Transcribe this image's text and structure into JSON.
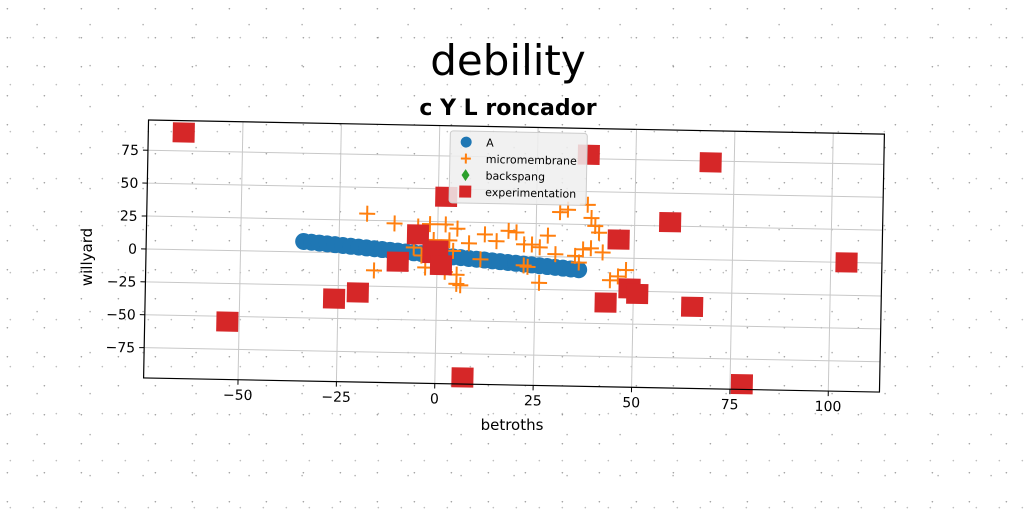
{
  "chart_data": {
    "type": "scatter",
    "title": "debility",
    "subtitle": "c Y L roncador",
    "xlabel": "betroths",
    "ylabel": "willyard",
    "xlim": [
      -74,
      113
    ],
    "ylim": [
      -98,
      98
    ],
    "xticks": [
      -50,
      -25,
      0,
      25,
      50,
      75,
      100
    ],
    "yticks": [
      -75,
      -50,
      -25,
      0,
      25,
      50,
      75
    ],
    "grid": true,
    "legend_position": "top-center",
    "series": [
      {
        "name": "A",
        "marker": "circle",
        "color": "#1f77b4",
        "points": [
          [
            -34,
            8
          ],
          [
            -32,
            7.5
          ],
          [
            -30,
            7
          ],
          [
            -28,
            6.5
          ],
          [
            -26,
            6
          ],
          [
            -24,
            5.5
          ],
          [
            -22,
            5
          ],
          [
            -20,
            4.5
          ],
          [
            -18,
            4
          ],
          [
            -16,
            3.5
          ],
          [
            -14,
            3
          ],
          [
            -12,
            2.5
          ],
          [
            -10,
            2
          ],
          [
            -8,
            1.5
          ],
          [
            -6,
            1
          ],
          [
            -4,
            0.5
          ],
          [
            -2,
            0
          ],
          [
            0,
            -0.5
          ],
          [
            2,
            -1
          ],
          [
            4,
            -1.5
          ],
          [
            6,
            -2
          ],
          [
            8,
            -2.5
          ],
          [
            10,
            -3
          ],
          [
            12,
            -3.5
          ],
          [
            14,
            -4
          ],
          [
            16,
            -4.5
          ],
          [
            18,
            -5
          ],
          [
            20,
            -5.5
          ],
          [
            22,
            -6
          ],
          [
            24,
            -6.5
          ],
          [
            26,
            -7
          ],
          [
            28,
            -7.5
          ],
          [
            30,
            -8
          ],
          [
            32,
            -8.5
          ],
          [
            34,
            -9
          ],
          [
            36,
            -9.5
          ]
        ]
      },
      {
        "name": "micromembrane",
        "marker": "plus",
        "color": "#ff7f0e",
        "points": [
          [
            -18,
            30
          ],
          [
            -11,
            23
          ],
          [
            -5,
            21
          ],
          [
            -2,
            23
          ],
          [
            2,
            23
          ],
          [
            5,
            20
          ],
          [
            3,
            11
          ],
          [
            4,
            3
          ],
          [
            -6,
            5
          ],
          [
            -4,
            -1
          ],
          [
            -16,
            -13
          ],
          [
            -3,
            -10
          ],
          [
            2,
            -13
          ],
          [
            5,
            -15
          ],
          [
            5,
            -22
          ],
          [
            6,
            -23
          ],
          [
            11,
            -3
          ],
          [
            18,
            19
          ],
          [
            20,
            18
          ],
          [
            22,
            9
          ],
          [
            22,
            -7
          ],
          [
            23,
            -8
          ],
          [
            24,
            9
          ],
          [
            26,
            7
          ],
          [
            26,
            -20
          ],
          [
            28,
            16
          ],
          [
            30,
            2
          ],
          [
            31,
            34
          ],
          [
            33,
            36
          ],
          [
            35,
            1
          ],
          [
            36,
            -4
          ],
          [
            37,
            6
          ],
          [
            39,
            7
          ],
          [
            38,
            40
          ],
          [
            39,
            30
          ],
          [
            40,
            24
          ],
          [
            41,
            19
          ],
          [
            42,
            4
          ],
          [
            44,
            -17
          ],
          [
            46,
            -14
          ],
          [
            48,
            -9
          ],
          [
            12,
            16
          ],
          [
            15,
            11
          ],
          [
            -1,
            11
          ],
          [
            8,
            9
          ]
        ]
      },
      {
        "name": "backspang",
        "marker": "diamond",
        "color": "#2ca02c",
        "points": []
      },
      {
        "name": "experimentation",
        "marker": "square",
        "color": "#d62728",
        "points": [
          [
            -65,
            89
          ],
          [
            -53,
            -54
          ],
          [
            -26,
            -35
          ],
          [
            -20,
            -30
          ],
          [
            -10,
            -6
          ],
          [
            -5,
            15
          ],
          [
            -1,
            1
          ],
          [
            0,
            3
          ],
          [
            1,
            -8
          ],
          [
            2,
            44
          ],
          [
            7,
            -93
          ],
          [
            38,
            78
          ],
          [
            43,
            -34
          ],
          [
            46,
            14
          ],
          [
            49,
            -23
          ],
          [
            51,
            -27
          ],
          [
            59,
            28
          ],
          [
            65,
            -36
          ],
          [
            69,
            74
          ],
          [
            78,
            -94
          ],
          [
            104,
            0
          ]
        ]
      }
    ]
  }
}
